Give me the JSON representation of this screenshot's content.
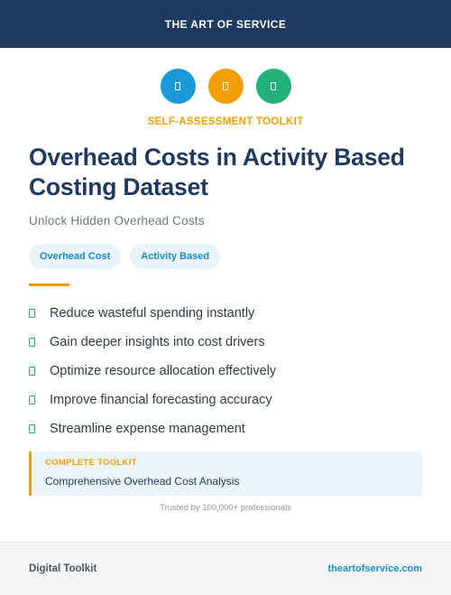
{
  "header": {
    "brand": "THE ART OF SERVICE"
  },
  "icons": [
    {
      "name": "blue-circle-icon",
      "color": "#1a9bd7"
    },
    {
      "name": "orange-circle-icon",
      "color": "#f29f05"
    },
    {
      "name": "green-circle-icon",
      "color": "#1fb37a"
    }
  ],
  "eyebrow": "SELF-ASSESSMENT TOOLKIT",
  "title": "Overhead Costs in Activity Based Costing Dataset",
  "subtitle": "Unlock Hidden Overhead Costs",
  "tags": [
    "Overhead Cost",
    "Activity Based"
  ],
  "benefits": [
    "Reduce wasteful spending instantly",
    "Gain deeper insights into cost drivers",
    "Optimize resource allocation effectively",
    "Improve financial forecasting accuracy",
    "Streamline expense management"
  ],
  "callout": {
    "label": "COMPLETE TOOLKIT",
    "text": "Comprehensive Overhead Cost Analysis"
  },
  "trust_line": "Trusted by 100,000+ professionals",
  "footer": {
    "left": "Digital Toolkit",
    "right": "theartofservice.com"
  },
  "colors": {
    "navy": "#1f3a5f",
    "accent_orange": "#f29f05",
    "accent_blue": "#1a8ccd",
    "accent_green": "#1fb37a"
  }
}
